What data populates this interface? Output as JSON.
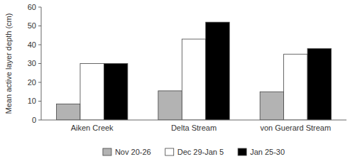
{
  "chart_data": {
    "type": "bar",
    "categories": [
      "Aiken Creek",
      "Delta Stream",
      "von Guerard Stream"
    ],
    "series": [
      {
        "name": "Nov 20-26",
        "color": "#b3b3b3",
        "values": [
          8.5,
          15.5,
          15.0
        ]
      },
      {
        "name": "Dec 29-Jan 5",
        "color": "#ffffff",
        "values": [
          30.0,
          43.0,
          35.0
        ]
      },
      {
        "name": "Jan 25-30",
        "color": "#000000",
        "values": [
          30.0,
          52.0,
          38.0
        ]
      }
    ],
    "ylabel": "Mean active layer depth (cm)",
    "ylim": [
      0,
      60
    ],
    "yticks": [
      0,
      10,
      20,
      30,
      40,
      50,
      60
    ],
    "grid": false,
    "legend": "bottom"
  }
}
